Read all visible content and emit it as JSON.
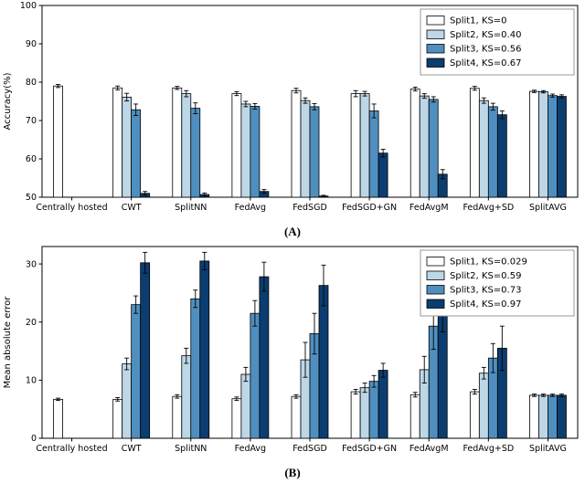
{
  "figure": {
    "captions": [
      "(A)",
      "(B)"
    ]
  },
  "chart_data": [
    {
      "type": "bar",
      "caption": "(A)",
      "title": "",
      "xlabel": "",
      "ylabel": "Accuracy(%)",
      "ylim": [
        50,
        100
      ],
      "yticks": [
        50,
        60,
        70,
        80,
        90,
        100
      ],
      "grid": false,
      "legend_position": "top-right",
      "bar_edge_color": "#000000",
      "categories": [
        "Centrally hosted",
        "CWT",
        "SplitNN",
        "FedAvg",
        "FedSGD",
        "FedSGD+GN",
        "FedAvgM",
        "FedAvg+SD",
        "SplitAVG"
      ],
      "series": [
        {
          "name": "Split1, KS=0",
          "color": "#ffffff",
          "values": [
            79,
            78.5,
            78.5,
            77,
            77.8,
            77,
            78.2,
            78.4,
            77.6
          ],
          "errors": [
            0.4,
            0.5,
            0.4,
            0.5,
            0.6,
            0.8,
            0.5,
            0.5,
            0.3
          ]
        },
        {
          "name": "Split2, KS=0.40",
          "color": "#bdd7e7",
          "values": [
            null,
            76.1,
            77,
            74.3,
            75.2,
            77,
            76.4,
            75.2,
            77.5
          ],
          "errors": [
            null,
            1.0,
            0.8,
            0.7,
            0.7,
            0.6,
            0.6,
            0.7,
            0.3
          ]
        },
        {
          "name": "Split3, KS=0.56",
          "color": "#4f8fc0",
          "values": [
            null,
            72.8,
            73.2,
            73.7,
            73.6,
            72.5,
            75.5,
            73.6,
            76.5
          ],
          "errors": [
            null,
            1.5,
            1.4,
            0.7,
            0.8,
            1.8,
            0.7,
            0.9,
            0.4
          ]
        },
        {
          "name": "Split4, KS=0.67",
          "color": "#0b3d70",
          "values": [
            null,
            51,
            50.7,
            51.5,
            50.3,
            61.5,
            56,
            71.5,
            76.3
          ],
          "errors": [
            null,
            0.5,
            0.4,
            0.5,
            0.2,
            1.0,
            1.2,
            1.0,
            0.4
          ]
        }
      ]
    },
    {
      "type": "bar",
      "caption": "(B)",
      "title": "",
      "xlabel": "",
      "ylabel": "Mean absolute error",
      "ylim": [
        0,
        33
      ],
      "yticks": [
        0,
        10,
        20,
        30
      ],
      "grid": false,
      "legend_position": "top-right",
      "bar_edge_color": "#000000",
      "categories": [
        "Centrally hosted",
        "CWT",
        "SplitNN",
        "FedAvg",
        "FedSGD",
        "FedSGD+GN",
        "FedAvgM",
        "FedAvg+SD",
        "SplitAVG"
      ],
      "series": [
        {
          "name": "Split1, KS=0.029",
          "color": "#ffffff",
          "values": [
            6.7,
            6.7,
            7.2,
            6.8,
            7.2,
            8.0,
            7.5,
            8.0,
            7.4
          ],
          "errors": [
            0.2,
            0.3,
            0.3,
            0.3,
            0.3,
            0.4,
            0.4,
            0.4,
            0.2
          ]
        },
        {
          "name": "Split2, KS=0.59",
          "color": "#bdd7e7",
          "values": [
            null,
            12.8,
            14.2,
            11.0,
            13.5,
            8.7,
            11.8,
            11.2,
            7.4
          ],
          "errors": [
            null,
            1.0,
            1.3,
            1.2,
            3.0,
            0.8,
            2.3,
            1.0,
            0.2
          ]
        },
        {
          "name": "Split3, KS=0.73",
          "color": "#4f8fc0",
          "values": [
            null,
            23.0,
            24.0,
            21.5,
            18.0,
            9.8,
            19.3,
            13.8,
            7.4
          ],
          "errors": [
            null,
            1.5,
            1.5,
            2.2,
            3.5,
            1.0,
            4.0,
            2.5,
            0.2
          ]
        },
        {
          "name": "Split4, KS=0.97",
          "color": "#0b3d70",
          "values": [
            null,
            30.2,
            30.5,
            27.8,
            26.3,
            11.7,
            21.8,
            15.5,
            7.4
          ],
          "errors": [
            null,
            1.8,
            1.5,
            2.5,
            3.5,
            1.2,
            3.5,
            3.8,
            0.2
          ]
        }
      ]
    }
  ]
}
